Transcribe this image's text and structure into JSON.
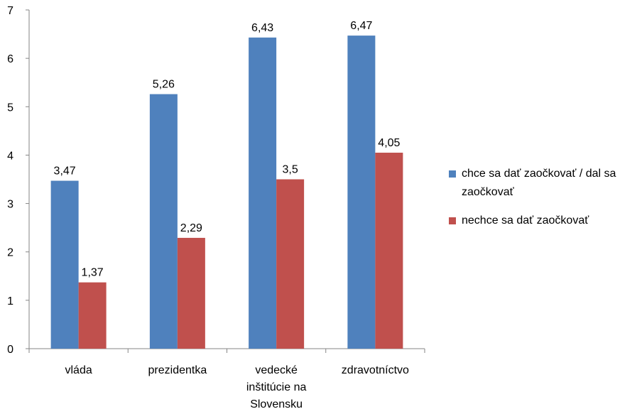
{
  "chart_data": {
    "type": "bar",
    "categories": [
      "vláda",
      "prezidentka",
      "vedecké inštitúcie na Slovensku",
      "zdravotníctvo"
    ],
    "category_lines": [
      [
        "vláda"
      ],
      [
        "prezidentka"
      ],
      [
        "vedecké",
        "inštitúcie na",
        "Slovensku"
      ],
      [
        "zdravotníctvo"
      ]
    ],
    "series": [
      {
        "name": "chce sa dať zaočkovať / dal sa zaočkovať",
        "values": [
          3.47,
          5.26,
          6.43,
          6.47
        ],
        "labels": [
          "3,47",
          "5,26",
          "6,43",
          "6,47"
        ],
        "color": "#4F81BD"
      },
      {
        "name": "nechce sa dať zaočkovať",
        "values": [
          1.37,
          2.29,
          3.5,
          4.05
        ],
        "labels": [
          "1,37",
          "2,29",
          "3,5",
          "4,05"
        ],
        "color": "#C0504D"
      }
    ],
    "legend_lines": [
      [
        "chce sa dať zaočkovať / dal sa",
        "zaočkovať"
      ],
      [
        "nechce sa dať zaočkovať"
      ]
    ],
    "title": "",
    "xlabel": "",
    "ylabel": "",
    "ylim": [
      0,
      7
    ],
    "yticks": [
      0,
      1,
      2,
      3,
      4,
      5,
      6,
      7
    ],
    "legend_position": "right"
  }
}
